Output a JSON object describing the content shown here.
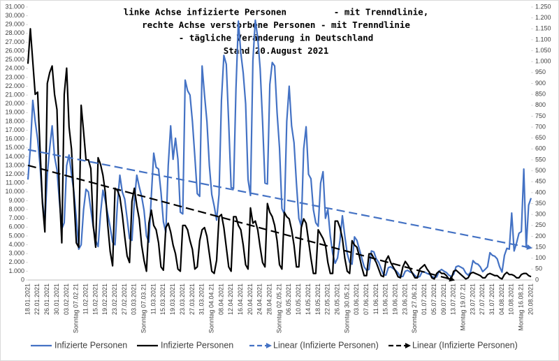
{
  "chart_data": {
    "type": "line",
    "title": [
      "linke Achse infizierte Personen         - mit Trenndlinie,",
      "rechte Achse verstorbene Personen - mit Trenndlinie",
      "- tägliche Veränderung in Deutschland",
      "Stand 20.August 2021"
    ],
    "categories": [
      "18.01.2021",
      null,
      null,
      null,
      "22.01.2021",
      null,
      null,
      null,
      "26.01.2021",
      null,
      null,
      null,
      "30.01.2021",
      null,
      null,
      null,
      "03.02.2021",
      null,
      null,
      null,
      "Sonntag 07.02.21",
      null,
      null,
      null,
      "11.02.2021",
      null,
      null,
      null,
      "15.02.2021",
      null,
      null,
      null,
      "19.02.2021",
      null,
      null,
      null,
      "23.02.2021",
      null,
      null,
      null,
      "27.02.2021",
      null,
      null,
      null,
      "03.03.2021",
      null,
      null,
      null,
      "Sonntag 07.03.21",
      null,
      null,
      null,
      "11.03.2021",
      null,
      null,
      null,
      "15.03.2021",
      null,
      null,
      null,
      "19.03.2021",
      null,
      null,
      null,
      "23.03.2021",
      null,
      null,
      null,
      "27.03.2021",
      null,
      null,
      null,
      "31.03.2021",
      null,
      null,
      null,
      "Sonntag 04.04.21",
      null,
      null,
      null,
      "08.04.2021",
      null,
      null,
      null,
      "12.04.2021",
      null,
      null,
      null,
      "16.04.2021",
      null,
      null,
      null,
      "20.04.2021",
      null,
      null,
      null,
      "24.04.2021",
      null,
      null,
      null,
      "28.04.2021",
      null,
      null,
      null,
      "Sonntag 02.05.21",
      null,
      null,
      null,
      "06.05.2021",
      null,
      null,
      null,
      "10.05.2021",
      null,
      null,
      null,
      "14.05.2021",
      null,
      null,
      null,
      "18.05.2021",
      null,
      null,
      null,
      "22.05.2021",
      null,
      null,
      null,
      "26.05.2021",
      null,
      null,
      null,
      "Sonntag 30.05.21",
      null,
      null,
      null,
      "03.06.2021",
      null,
      null,
      null,
      "07.06.2021",
      null,
      null,
      null,
      "11.06.2021",
      null,
      null,
      null,
      "15.06.2021",
      null,
      null,
      null,
      "19.06.2021",
      null,
      null,
      null,
      "23.06.2021",
      null,
      null,
      null,
      "Sonntag 27.06.21",
      null,
      null,
      null,
      "01.07.2021",
      null,
      null,
      null,
      "05.07.2021",
      null,
      null,
      null,
      "09.07.2021",
      null,
      null,
      null,
      "13.07.2021",
      null,
      null,
      null,
      "Montag 19.07.21",
      null,
      null,
      null,
      "23.07.2021",
      null,
      null,
      null,
      "27.07.2021",
      null,
      null,
      null,
      "31.07.2021",
      null,
      null,
      null,
      "04.08.2021",
      null,
      null,
      null,
      "10.08.2021",
      null,
      null,
      null,
      "Montag 16.08.21",
      null,
      null,
      null,
      "20.08.2021"
    ],
    "series": [
      {
        "name": "Infizierte Personen",
        "color": "#4472c4",
        "axis": "y",
        "values": [
          11400,
          15000,
          20400,
          18000,
          16000,
          13000,
          9000,
          6400,
          12000,
          15000,
          17500,
          14000,
          12500,
          9000,
          5800,
          6500,
          13000,
          14200,
          12000,
          10000,
          7000,
          3500,
          4000,
          8000,
          10300,
          10000,
          8000,
          6000,
          4500,
          3800,
          7500,
          10200,
          9000,
          7500,
          6000,
          4300,
          4000,
          8700,
          11900,
          10000,
          9200,
          7000,
          4700,
          4500,
          9000,
          11900,
          10600,
          9500,
          7900,
          5000,
          4300,
          9500,
          14400,
          12800,
          12600,
          10000,
          6600,
          5400,
          13000,
          17500,
          13700,
          16100,
          13700,
          7700,
          7500,
          22700,
          21500,
          21000,
          18000,
          14000,
          9800,
          9500,
          24300,
          21000,
          18000,
          13000,
          9700,
          8400,
          6800,
          9700,
          20400,
          25500,
          24500,
          17800,
          10500,
          10400,
          21700,
          29400,
          25800,
          23500,
          20000,
          11400,
          9600,
          24900,
          29500,
          27500,
          24000,
          18000,
          11000,
          10900,
          22200,
          24700,
          24300,
          19000,
          15000,
          8100,
          7500,
          18000,
          22000,
          17500,
          15600,
          11000,
          7000,
          6100,
          14900,
          17400,
          12000,
          11500,
          8000,
          6500,
          6100,
          11000,
          12300,
          7000,
          8000,
          5000,
          3000,
          1900,
          2500,
          4500,
          7300,
          5000,
          3000,
          2000,
          1800,
          4900,
          4500,
          3500,
          2500,
          1500,
          1100,
          1200,
          3300,
          3200,
          2400,
          2000,
          1300,
          600,
          550,
          1400,
          1500,
          1300,
          1100,
          800,
          400,
          400,
          1000,
          1100,
          900,
          800,
          500,
          300,
          400,
          950,
          900,
          750,
          650,
          400,
          300,
          350,
          1000,
          1200,
          1000,
          850,
          550,
          400,
          650,
          1500,
          1600,
          1450,
          1300,
          800,
          550,
          900,
          2200,
          1900,
          1800,
          1500,
          950,
          1200,
          1500,
          3100,
          2800,
          2700,
          2400,
          1500,
          900,
          2800,
          3600,
          3500,
          7600,
          3300,
          4200,
          5300,
          5500,
          12600,
          3700,
          8500,
          9300
        ]
      },
      {
        "name": "Infizierte Personen",
        "color": "#000000",
        "axis": "y2",
        "values": [
          990,
          1150,
          1000,
          850,
          860,
          600,
          350,
          220,
          900,
          950,
          980,
          850,
          780,
          400,
          170,
          850,
          970,
          700,
          600,
          380,
          170,
          150,
          800,
          680,
          550,
          550,
          510,
          250,
          150,
          560,
          530,
          480,
          400,
          250,
          130,
          65,
          420,
          410,
          380,
          300,
          200,
          110,
          80,
          360,
          420,
          340,
          280,
          160,
          90,
          40,
          260,
          320,
          250,
          230,
          170,
          60,
          45,
          240,
          260,
          220,
          160,
          120,
          50,
          40,
          250,
          250,
          230,
          180,
          140,
          50,
          60,
          180,
          230,
          240,
          200,
          120,
          40,
          30,
          90,
          290,
          300,
          240,
          150,
          60,
          40,
          290,
          290,
          250,
          230,
          160,
          70,
          50,
          330,
          260,
          270,
          230,
          150,
          80,
          60,
          350,
          310,
          290,
          250,
          180,
          70,
          50,
          310,
          290,
          280,
          230,
          160,
          60,
          60,
          240,
          280,
          260,
          180,
          100,
          30,
          30,
          230,
          210,
          190,
          160,
          80,
          30,
          30,
          270,
          270,
          240,
          190,
          100,
          40,
          30,
          180,
          160,
          150,
          110,
          60,
          20,
          20,
          120,
          120,
          100,
          80,
          50,
          20,
          15,
          90,
          110,
          80,
          60,
          40,
          15,
          10,
          60,
          85,
          70,
          50,
          30,
          10,
          10,
          50,
          60,
          70,
          50,
          35,
          10,
          5,
          30,
          40,
          30,
          30,
          20,
          5,
          5,
          40,
          45,
          35,
          25,
          15,
          5,
          10,
          30,
          35,
          30,
          25,
          20,
          10,
          10,
          25,
          30,
          25,
          20,
          20,
          10,
          5,
          25,
          35,
          25,
          25,
          20,
          10,
          10,
          25,
          30,
          30,
          20,
          15
        ]
      }
    ],
    "trendlines": [
      {
        "name": "Linear (Infizierte Personen)",
        "color": "#4472c4",
        "axis": "y",
        "x": [
          "18.01.2021",
          "20.08.2021"
        ],
        "values": [
          14800,
          3650
        ]
      },
      {
        "name": "Linear (Infizierte Personen)",
        "color": "#000000",
        "axis": "y2",
        "x": [
          "18.01.2021",
          "13.07.2021"
        ],
        "values": [
          525,
          0
        ]
      }
    ],
    "ylim": [
      0,
      31000
    ],
    "yticks": [
      0,
      {
        "value": 1000,
        "label": "1.000"
      },
      {
        "value": 2000,
        "label": "2.000"
      },
      {
        "value": 3000,
        "label": "3.000"
      },
      {
        "value": 4000,
        "label": "4.000"
      },
      {
        "value": 5000,
        "label": "5.000"
      },
      {
        "value": 6000,
        "label": "6.000"
      },
      {
        "value": 7000,
        "label": "7.000"
      },
      {
        "value": 8000,
        "label": "8.000"
      },
      {
        "value": 9000,
        "label": "9.000"
      },
      {
        "value": 10000,
        "label": "10.000"
      },
      {
        "value": 11000,
        "label": "11.000"
      },
      {
        "value": 12000,
        "label": "12.000"
      },
      {
        "value": 13000,
        "label": "13.000"
      },
      {
        "value": 14000,
        "label": "14.000"
      },
      {
        "value": 15000,
        "label": "15.000"
      },
      {
        "value": 16000,
        "label": "16.000"
      },
      {
        "value": 17000,
        "label": "17.000"
      },
      {
        "value": 18000,
        "label": "18.000"
      },
      {
        "value": 19000,
        "label": "19.000"
      },
      {
        "value": 20000,
        "label": "20.000"
      },
      {
        "value": 21000,
        "label": "21.000"
      },
      {
        "value": 22000,
        "label": "22.000"
      },
      {
        "value": 23000,
        "label": "23.000"
      },
      {
        "value": 24000,
        "label": "24.000"
      },
      {
        "value": 25000,
        "label": "25.000"
      },
      {
        "value": 26000,
        "label": "26.000"
      },
      {
        "value": 27000,
        "label": "27.000"
      },
      {
        "value": 28000,
        "label": "28.000"
      },
      {
        "value": 29000,
        "label": "29.000"
      },
      {
        "value": 30000,
        "label": "30.000"
      },
      {
        "value": 31000,
        "label": "31.000"
      }
    ],
    "y2lim": [
      0,
      1250
    ],
    "y2ticks": [
      0,
      50,
      100,
      150,
      200,
      250,
      300,
      350,
      400,
      450,
      500,
      550,
      600,
      650,
      700,
      750,
      800,
      850,
      900,
      950,
      {
        "value": 1000,
        "label": "1.000"
      },
      {
        "value": 1050,
        "label": "1.050"
      },
      {
        "value": 1100,
        "label": "1.100"
      },
      {
        "value": 1150,
        "label": "1.150"
      },
      {
        "value": 1200,
        "label": "1.200"
      },
      {
        "value": 1250,
        "label": "1.250"
      }
    ],
    "grid": false,
    "legend": "bottom"
  }
}
